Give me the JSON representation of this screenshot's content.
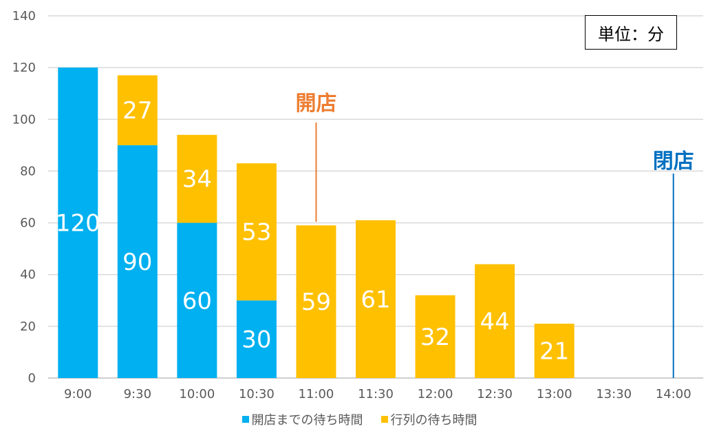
{
  "chart_data": {
    "type": "bar",
    "stacked": true,
    "categories": [
      "9:00",
      "9:30",
      "10:00",
      "10:30",
      "11:00",
      "11:30",
      "12:00",
      "12:30",
      "13:00",
      "13:30",
      "14:00"
    ],
    "series": [
      {
        "name": "開店までの待ち時間",
        "color": "#00B0F0",
        "values": [
          120,
          90,
          60,
          30,
          0,
          0,
          0,
          0,
          0,
          0,
          0
        ]
      },
      {
        "name": "行列の待ち時間",
        "color": "#FFC000",
        "values": [
          0,
          27,
          34,
          53,
          59,
          61,
          32,
          44,
          21,
          0,
          0
        ]
      }
    ],
    "ylim": [
      0,
      140
    ],
    "yticks": [
      0,
      20,
      40,
      60,
      80,
      100,
      120,
      140
    ],
    "grid": true,
    "legend": "bottom",
    "annotations": [
      {
        "text": "開店",
        "category": "11:00",
        "color": "#ED7D31"
      },
      {
        "text": "閉店",
        "category": "14:00",
        "color": "#0070C0"
      }
    ],
    "unit_label": "単位：分"
  },
  "colors": {
    "grid": "#D9D9D9",
    "axis_text": "#595959",
    "axis_line": "#BFBFBF",
    "data_label": "#FFFFFF"
  }
}
